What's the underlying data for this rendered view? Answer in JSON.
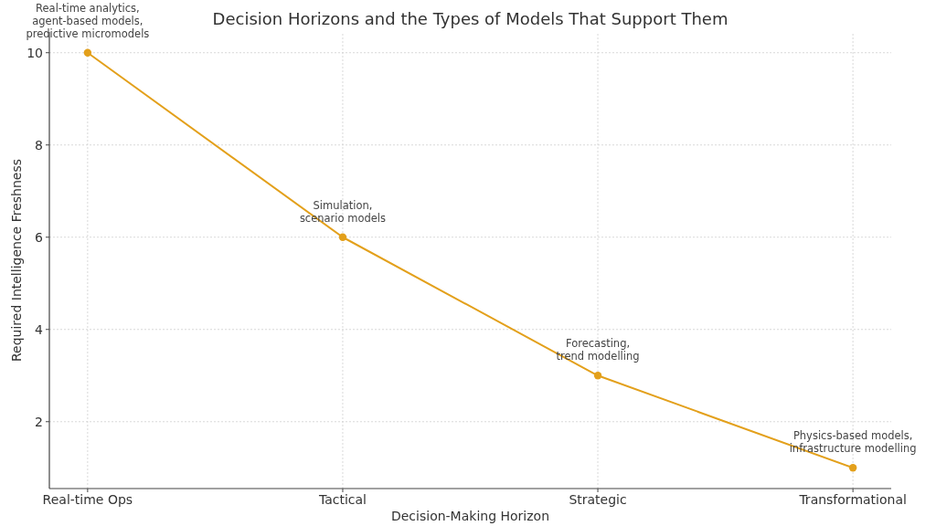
{
  "chart_data": {
    "type": "line",
    "title": "Decision Horizons and the Types of Models That Support Them",
    "xlabel": "Decision-Making Horizon",
    "ylabel": "Required Intelligence Freshness",
    "categories": [
      "Real-time Ops",
      "Tactical",
      "Strategic",
      "Transformational"
    ],
    "values": [
      10,
      6,
      3,
      1
    ],
    "color": "#e3a01b",
    "marker": "circle",
    "line_style": "solid",
    "ylim": [
      0.55,
      10.45
    ],
    "yticks": [
      2,
      4,
      6,
      8,
      10
    ],
    "grid": true,
    "annotations": [
      {
        "text": "Real-time analytics,\nagent-based models,\npredictive micromodels",
        "x": "Real-time Ops",
        "y": 10
      },
      {
        "text": "Simulation,\nscenario models",
        "x": "Tactical",
        "y": 6
      },
      {
        "text": "Forecasting,\ntrend modelling",
        "x": "Strategic",
        "y": 3
      },
      {
        "text": "Physics-based models,\ninfrastructure modelling",
        "x": "Transformational",
        "y": 1
      }
    ]
  }
}
